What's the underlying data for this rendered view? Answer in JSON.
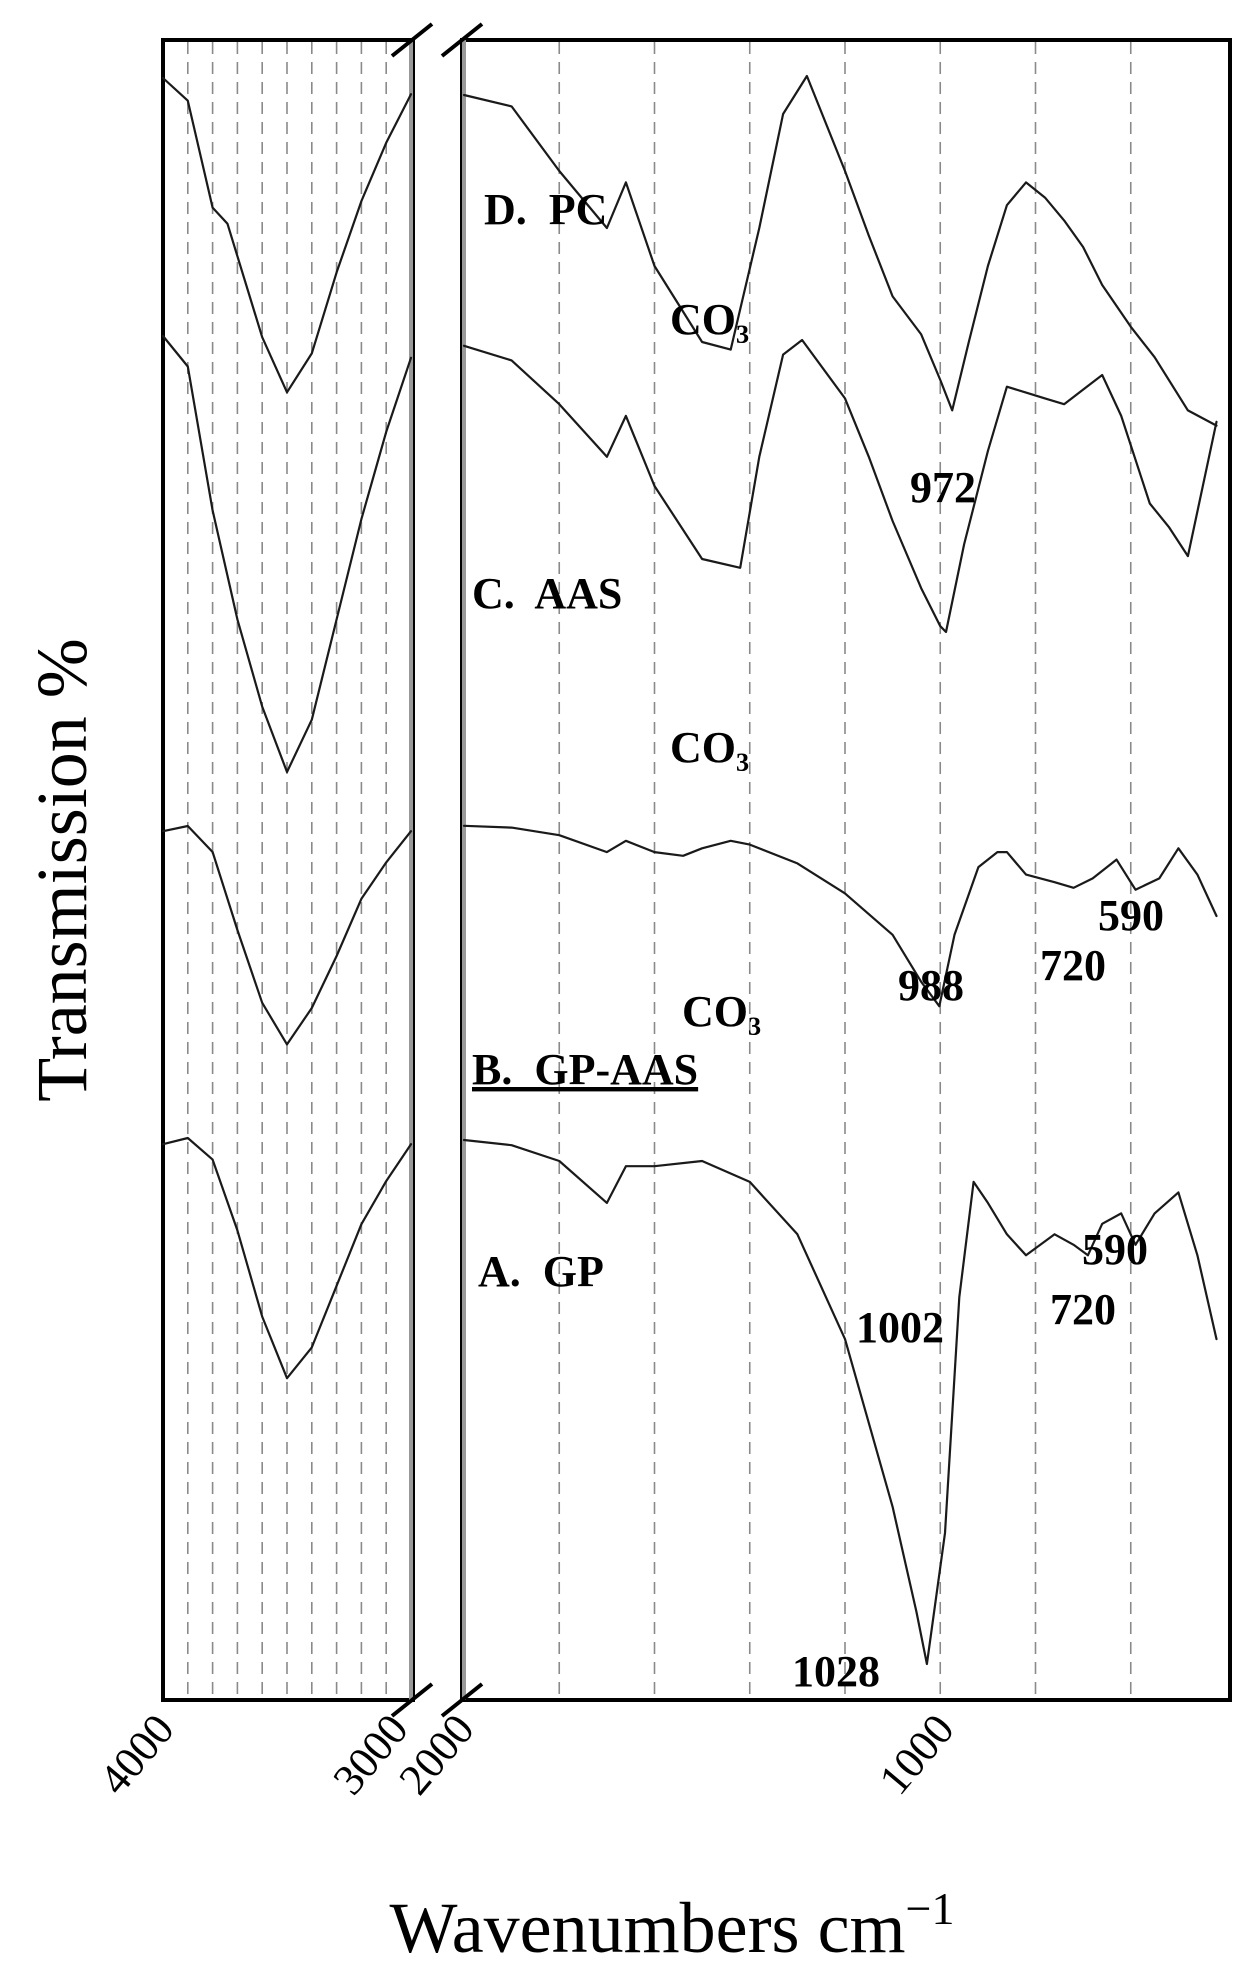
{
  "chart_data": {
    "type": "line",
    "xlabel": "Wavenumbers cm",
    "xlabel_sup": "−1",
    "ylabel": "Transmission %",
    "x_axis": {
      "reversed": true,
      "broken": true,
      "left_panel_range": [
        4000,
        3000
      ],
      "right_panel_range": [
        2000,
        400
      ],
      "tick_labels": [
        "4000",
        "3000",
        "2000",
        "1000"
      ]
    },
    "grid": "vertical dashed",
    "series": [
      {
        "name": "D.  PC",
        "points": [
          [
            4000,
            1.0
          ],
          [
            3900,
            0.93
          ],
          [
            3800,
            0.6
          ],
          [
            3740,
            0.55
          ],
          [
            3700,
            0.45
          ],
          [
            3600,
            0.2
          ],
          [
            3500,
            0.03
          ],
          [
            3400,
            0.15
          ],
          [
            3300,
            0.4
          ],
          [
            3200,
            0.62
          ],
          [
            3100,
            0.8
          ],
          [
            3000,
            0.95
          ],
          [
            2000,
            0.95
          ],
          [
            1900,
            0.92
          ],
          [
            1800,
            0.75
          ],
          [
            1700,
            0.6
          ],
          [
            1660,
            0.72
          ],
          [
            1600,
            0.5
          ],
          [
            1500,
            0.3
          ],
          [
            1440,
            0.28
          ],
          [
            1380,
            0.6
          ],
          [
            1330,
            0.9
          ],
          [
            1280,
            1.0
          ],
          [
            1200,
            0.75
          ],
          [
            1150,
            0.58
          ],
          [
            1100,
            0.42
          ],
          [
            1040,
            0.32
          ],
          [
            1000,
            0.2
          ],
          [
            975,
            0.12
          ],
          [
            940,
            0.3
          ],
          [
            900,
            0.5
          ],
          [
            860,
            0.66
          ],
          [
            820,
            0.72
          ],
          [
            780,
            0.68
          ],
          [
            740,
            0.62
          ],
          [
            700,
            0.55
          ],
          [
            660,
            0.45
          ],
          [
            600,
            0.34
          ],
          [
            550,
            0.26
          ],
          [
            480,
            0.12
          ],
          [
            420,
            0.08
          ]
        ]
      },
      {
        "name": "C.  AAS",
        "points": [
          [
            4000,
            1.0
          ],
          [
            3900,
            0.93
          ],
          [
            3800,
            0.6
          ],
          [
            3700,
            0.35
          ],
          [
            3600,
            0.15
          ],
          [
            3500,
            0.0
          ],
          [
            3400,
            0.12
          ],
          [
            3300,
            0.35
          ],
          [
            3200,
            0.58
          ],
          [
            3100,
            0.78
          ],
          [
            3000,
            0.95
          ],
          [
            2000,
            0.98
          ],
          [
            1900,
            0.93
          ],
          [
            1800,
            0.78
          ],
          [
            1700,
            0.6
          ],
          [
            1660,
            0.74
          ],
          [
            1600,
            0.5
          ],
          [
            1500,
            0.25
          ],
          [
            1420,
            0.22
          ],
          [
            1380,
            0.6
          ],
          [
            1330,
            0.95
          ],
          [
            1290,
            1.0
          ],
          [
            1200,
            0.8
          ],
          [
            1150,
            0.6
          ],
          [
            1100,
            0.38
          ],
          [
            1040,
            0.15
          ],
          [
            1000,
            0.02
          ],
          [
            988,
            0.0
          ],
          [
            950,
            0.3
          ],
          [
            900,
            0.62
          ],
          [
            860,
            0.84
          ],
          [
            820,
            0.82
          ],
          [
            780,
            0.8
          ],
          [
            740,
            0.78
          ],
          [
            700,
            0.83
          ],
          [
            660,
            0.88
          ],
          [
            620,
            0.74
          ],
          [
            560,
            0.44
          ],
          [
            520,
            0.36
          ],
          [
            480,
            0.26
          ],
          [
            420,
            0.72
          ]
        ]
      },
      {
        "name": "B.  GP-AAS",
        "points": [
          [
            4000,
            0.98
          ],
          [
            3900,
            1.0
          ],
          [
            3800,
            0.9
          ],
          [
            3700,
            0.6
          ],
          [
            3600,
            0.32
          ],
          [
            3500,
            0.16
          ],
          [
            3400,
            0.3
          ],
          [
            3300,
            0.5
          ],
          [
            3200,
            0.72
          ],
          [
            3100,
            0.86
          ],
          [
            3000,
            0.98
          ],
          [
            2000,
            0.98
          ],
          [
            1900,
            0.97
          ],
          [
            1800,
            0.93
          ],
          [
            1700,
            0.84
          ],
          [
            1660,
            0.9
          ],
          [
            1600,
            0.84
          ],
          [
            1540,
            0.82
          ],
          [
            1500,
            0.86
          ],
          [
            1440,
            0.9
          ],
          [
            1400,
            0.88
          ],
          [
            1300,
            0.78
          ],
          [
            1200,
            0.62
          ],
          [
            1100,
            0.4
          ],
          [
            1040,
            0.15
          ],
          [
            1002,
            0.02
          ],
          [
            970,
            0.4
          ],
          [
            920,
            0.76
          ],
          [
            880,
            0.84
          ],
          [
            860,
            0.84
          ],
          [
            820,
            0.72
          ],
          [
            760,
            0.68
          ],
          [
            720,
            0.65
          ],
          [
            680,
            0.7
          ],
          [
            630,
            0.8
          ],
          [
            590,
            0.64
          ],
          [
            540,
            0.7
          ],
          [
            500,
            0.86
          ],
          [
            460,
            0.72
          ],
          [
            420,
            0.5
          ]
        ]
      },
      {
        "name": "A.  GP",
        "points": [
          [
            4000,
            0.98
          ],
          [
            3900,
            1.0
          ],
          [
            3800,
            0.93
          ],
          [
            3700,
            0.7
          ],
          [
            3600,
            0.42
          ],
          [
            3500,
            0.22
          ],
          [
            3400,
            0.32
          ],
          [
            3300,
            0.52
          ],
          [
            3200,
            0.72
          ],
          [
            3100,
            0.86
          ],
          [
            3000,
            0.98
          ],
          [
            2000,
            1.0
          ],
          [
            1900,
            0.99
          ],
          [
            1800,
            0.96
          ],
          [
            1700,
            0.88
          ],
          [
            1660,
            0.95
          ],
          [
            1600,
            0.95
          ],
          [
            1500,
            0.96
          ],
          [
            1400,
            0.92
          ],
          [
            1300,
            0.82
          ],
          [
            1200,
            0.62
          ],
          [
            1100,
            0.3
          ],
          [
            1050,
            0.1
          ],
          [
            1028,
            0.0
          ],
          [
            990,
            0.25
          ],
          [
            960,
            0.7
          ],
          [
            930,
            0.92
          ],
          [
            900,
            0.88
          ],
          [
            860,
            0.82
          ],
          [
            820,
            0.78
          ],
          [
            790,
            0.8
          ],
          [
            760,
            0.82
          ],
          [
            720,
            0.8
          ],
          [
            690,
            0.78
          ],
          [
            660,
            0.84
          ],
          [
            620,
            0.86
          ],
          [
            590,
            0.8
          ],
          [
            550,
            0.86
          ],
          [
            500,
            0.9
          ],
          [
            460,
            0.78
          ],
          [
            420,
            0.62
          ]
        ]
      }
    ],
    "annotations": [
      {
        "text": "CO₃"
      },
      {
        "text": "CO₃"
      },
      {
        "text": "CO₃"
      },
      {
        "text": "972"
      },
      {
        "text": "988"
      },
      {
        "text": "720"
      },
      {
        "text": "590"
      },
      {
        "text": "1002"
      },
      {
        "text": "720"
      },
      {
        "text": "590"
      },
      {
        "text": "1028"
      }
    ]
  }
}
